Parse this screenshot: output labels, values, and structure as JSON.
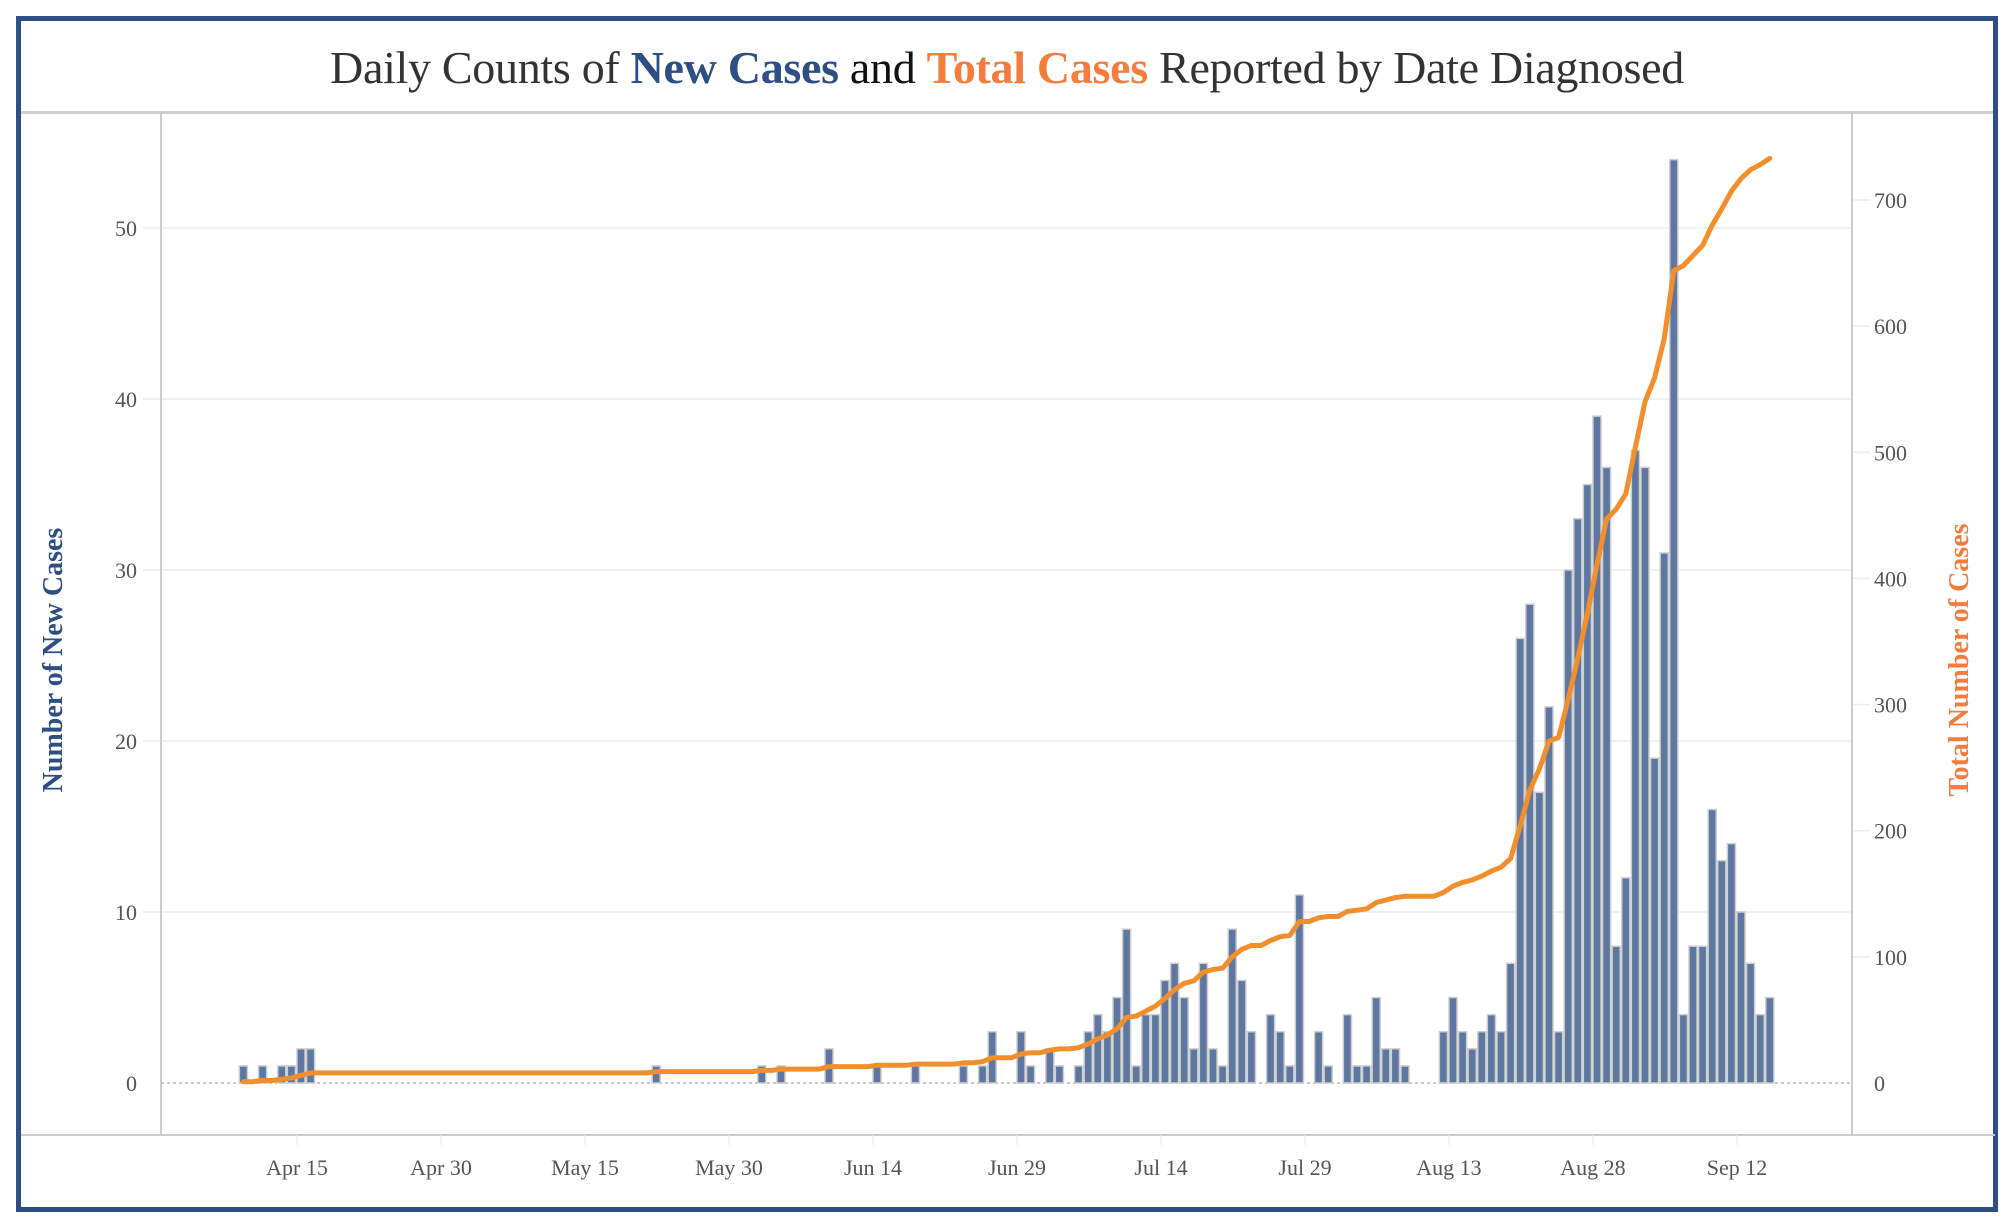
{
  "chart_data": {
    "type": "bar+line",
    "title": {
      "parts": [
        {
          "text": "Daily Counts of ",
          "style": "plain"
        },
        {
          "text": "New Cases",
          "style": "new"
        },
        {
          "text": " and ",
          "style": "and"
        },
        {
          "text": "Total Cases",
          "style": "total"
        },
        {
          "text": " Reported by Date Diagnosed",
          "style": "plain"
        }
      ]
    },
    "colors": {
      "new_cases": "#5e77a0",
      "total_cases": "#f28e2b",
      "frame": "#2d4f84",
      "title_new": "#2d4f84",
      "title_total": "#f47c3c"
    },
    "ylabel_left": "Number of New Cases",
    "ylabel_right": "Total Number of Cases",
    "ylim_left": [
      0,
      55
    ],
    "ylim_right": [
      0,
      745
    ],
    "yticks_left": [
      0,
      10,
      20,
      30,
      40,
      50
    ],
    "yticks_right": [
      0,
      100,
      200,
      300,
      400,
      500,
      600,
      700
    ],
    "x_start_date": "Apr 9",
    "x_range_days_from_apr15": [
      -9,
      157
    ],
    "xticks": [
      {
        "label": "Apr 15",
        "day": 0
      },
      {
        "label": "Apr 30",
        "day": 15
      },
      {
        "label": "May 15",
        "day": 30
      },
      {
        "label": "May 30",
        "day": 45
      },
      {
        "label": "Jun 14",
        "day": 60
      },
      {
        "label": "Jun 29",
        "day": 75
      },
      {
        "label": "Jul 14",
        "day": 90
      },
      {
        "label": "Jul 29",
        "day": 105
      },
      {
        "label": "Aug 13",
        "day": 120
      },
      {
        "label": "Aug 28",
        "day": 135
      },
      {
        "label": "Sep 12",
        "day": 150
      }
    ],
    "grid": true,
    "legend": "none",
    "series": [
      {
        "name": "New Cases",
        "type": "bar",
        "axis": "left",
        "points": [
          {
            "day": -6,
            "value": 1
          },
          {
            "day": -4,
            "value": 1
          },
          {
            "day": -2,
            "value": 1
          },
          {
            "day": -1,
            "value": 1
          },
          {
            "day": 0,
            "value": 2
          },
          {
            "day": 1,
            "value": 2
          },
          {
            "day": 37,
            "value": 1
          },
          {
            "day": 48,
            "value": 1
          },
          {
            "day": 50,
            "value": 1
          },
          {
            "day": 55,
            "value": 2
          },
          {
            "day": 60,
            "value": 1
          },
          {
            "day": 64,
            "value": 1
          },
          {
            "day": 69,
            "value": 1
          },
          {
            "day": 71,
            "value": 1
          },
          {
            "day": 72,
            "value": 3
          },
          {
            "day": 75,
            "value": 3
          },
          {
            "day": 76,
            "value": 1
          },
          {
            "day": 78,
            "value": 2
          },
          {
            "day": 79,
            "value": 1
          },
          {
            "day": 81,
            "value": 1
          },
          {
            "day": 82,
            "value": 3
          },
          {
            "day": 83,
            "value": 4
          },
          {
            "day": 84,
            "value": 3
          },
          {
            "day": 85,
            "value": 5
          },
          {
            "day": 86,
            "value": 9
          },
          {
            "day": 87,
            "value": 1
          },
          {
            "day": 88,
            "value": 4
          },
          {
            "day": 89,
            "value": 4
          },
          {
            "day": 90,
            "value": 6
          },
          {
            "day": 91,
            "value": 7
          },
          {
            "day": 92,
            "value": 5
          },
          {
            "day": 93,
            "value": 2
          },
          {
            "day": 94,
            "value": 7
          },
          {
            "day": 95,
            "value": 2
          },
          {
            "day": 96,
            "value": 1
          },
          {
            "day": 97,
            "value": 9
          },
          {
            "day": 98,
            "value": 6
          },
          {
            "day": 99,
            "value": 3
          },
          {
            "day": 101,
            "value": 4
          },
          {
            "day": 102,
            "value": 3
          },
          {
            "day": 103,
            "value": 1
          },
          {
            "day": 104,
            "value": 11
          },
          {
            "day": 106,
            "value": 3
          },
          {
            "day": 107,
            "value": 1
          },
          {
            "day": 109,
            "value": 4
          },
          {
            "day": 110,
            "value": 1
          },
          {
            "day": 111,
            "value": 1
          },
          {
            "day": 112,
            "value": 5
          },
          {
            "day": 113,
            "value": 2
          },
          {
            "day": 114,
            "value": 2
          },
          {
            "day": 115,
            "value": 1
          },
          {
            "day": 119,
            "value": 3
          },
          {
            "day": 120,
            "value": 5
          },
          {
            "day": 121,
            "value": 3
          },
          {
            "day": 122,
            "value": 2
          },
          {
            "day": 123,
            "value": 3
          },
          {
            "day": 124,
            "value": 4
          },
          {
            "day": 125,
            "value": 3
          },
          {
            "day": 126,
            "value": 7
          },
          {
            "day": 127,
            "value": 26
          },
          {
            "day": 128,
            "value": 28
          },
          {
            "day": 129,
            "value": 17
          },
          {
            "day": 130,
            "value": 22
          },
          {
            "day": 131,
            "value": 3
          },
          {
            "day": 132,
            "value": 30
          },
          {
            "day": 133,
            "value": 33
          },
          {
            "day": 134,
            "value": 35
          },
          {
            "day": 135,
            "value": 39
          },
          {
            "day": 136,
            "value": 36
          },
          {
            "day": 137,
            "value": 8
          },
          {
            "day": 138,
            "value": 12
          },
          {
            "day": 139,
            "value": 37
          },
          {
            "day": 140,
            "value": 36
          },
          {
            "day": 141,
            "value": 19
          },
          {
            "day": 142,
            "value": 31
          },
          {
            "day": 143,
            "value": 54
          },
          {
            "day": 144,
            "value": 4
          },
          {
            "day": 145,
            "value": 8
          },
          {
            "day": 146,
            "value": 8
          },
          {
            "day": 147,
            "value": 16
          },
          {
            "day": 148,
            "value": 13
          },
          {
            "day": 149,
            "value": 14
          },
          {
            "day": 150,
            "value": 10
          },
          {
            "day": 151,
            "value": 7
          },
          {
            "day": 152,
            "value": 4
          },
          {
            "day": 153,
            "value": 5
          }
        ]
      },
      {
        "name": "Total Cases",
        "type": "line",
        "axis": "right",
        "derived_from": "cumulative sum of New Cases",
        "final_value": 733
      }
    ]
  }
}
